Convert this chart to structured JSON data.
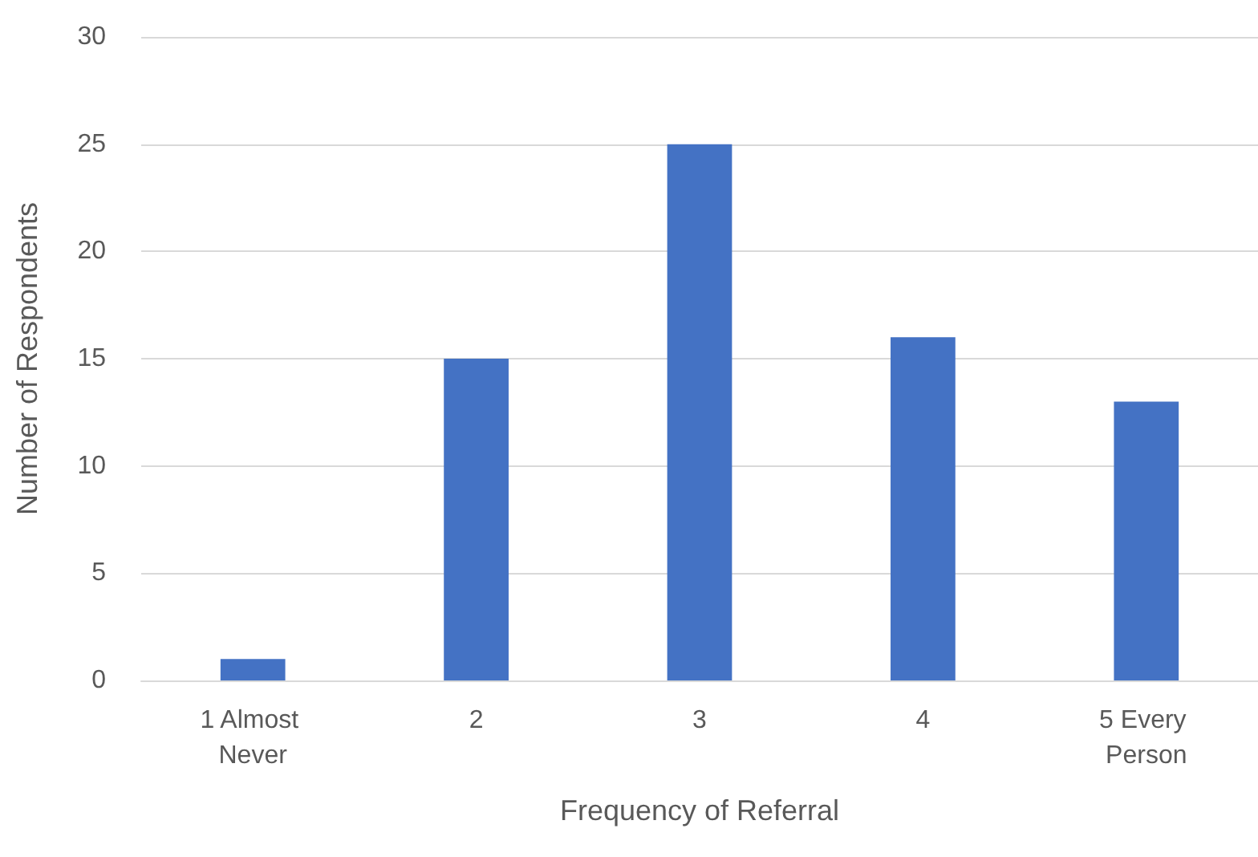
{
  "chart_data": {
    "type": "bar",
    "xlabel": "Frequency of Referral",
    "ylabel": "Number of Respondents",
    "categories": [
      "1 Almost Never",
      "2",
      "3",
      "4",
      "5 Every Person"
    ],
    "values": [
      1,
      15,
      25,
      16,
      13
    ],
    "color": "#4472c4",
    "ylim": [
      0,
      30
    ],
    "yticks": [
      0,
      5,
      10,
      15,
      20,
      25,
      30
    ],
    "grid": "y"
  }
}
